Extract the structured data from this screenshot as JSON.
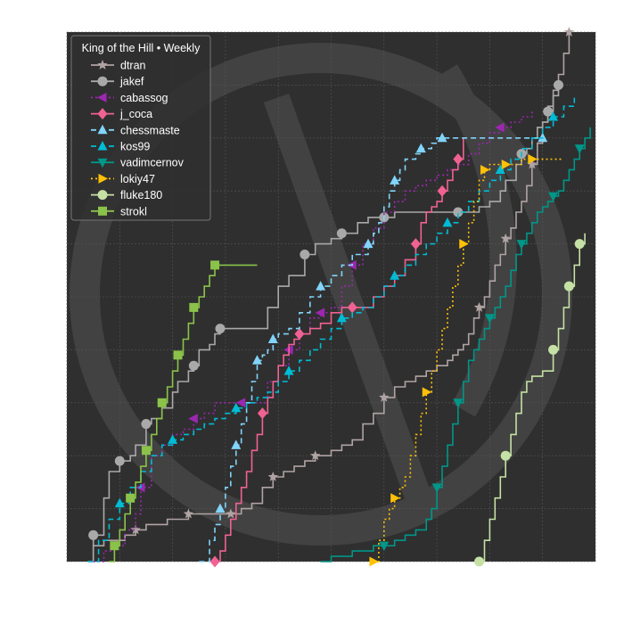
{
  "chart_data": {
    "type": "line",
    "title": "",
    "xlabel": "",
    "ylabel": "",
    "xlim": [
      0,
      100
    ],
    "ylim": [
      0,
      100
    ],
    "grid": true,
    "legend": {
      "title": "King of the Hill • Weekly",
      "placement": "top-left"
    },
    "background": {
      "plot": "#2f2f2f",
      "grid": "#555555",
      "watermark": "lichess-knight"
    },
    "series": [
      {
        "name": "dtran",
        "color": "#b0a3a3",
        "dash": "solid",
        "marker": "star",
        "x": [
          4,
          5,
          7,
          9,
          11,
          12,
          13,
          15,
          17,
          19,
          21,
          23,
          25,
          27,
          29,
          31,
          33,
          35,
          37,
          39,
          41,
          43,
          45,
          47,
          48,
          50,
          52,
          54,
          56,
          58,
          60,
          62,
          64,
          66,
          67,
          68,
          69,
          70,
          71,
          72,
          73,
          74,
          75,
          76,
          77,
          78,
          79,
          80,
          81,
          82,
          83,
          84,
          85,
          86,
          87,
          88,
          89,
          90,
          91,
          92,
          93,
          94,
          95
        ],
        "y": [
          0,
          3,
          4,
          4,
          5,
          5,
          6,
          7,
          7,
          8,
          8,
          9,
          9,
          9,
          9,
          9,
          10,
          11,
          14,
          16,
          17,
          18,
          19,
          20,
          20,
          21,
          22,
          23,
          26,
          28,
          31,
          33,
          34,
          35,
          35,
          36,
          36,
          37,
          37,
          38,
          39,
          40,
          41,
          43,
          46,
          48,
          50,
          53,
          56,
          58,
          61,
          63,
          66,
          68,
          71,
          75,
          79,
          83,
          86,
          89,
          92,
          96,
          100
        ],
        "marker_idx": [
          6,
          11,
          15,
          19,
          23,
          30,
          45,
          50,
          55,
          62
        ]
      },
      {
        "name": "jakef",
        "color": "#a9a9a9",
        "dash": "solid",
        "marker": "circle",
        "x": [
          4,
          5,
          7,
          8,
          10,
          12,
          13,
          15,
          16,
          18,
          20,
          21,
          23,
          24,
          25,
          27,
          28,
          29,
          32,
          35,
          38,
          40,
          42,
          45,
          47,
          50,
          52,
          55,
          57,
          60,
          62,
          64,
          66,
          67,
          68,
          69,
          70,
          71,
          72,
          73,
          74,
          76,
          78,
          80,
          82,
          83,
          85,
          86,
          87,
          88,
          89,
          90,
          91,
          92,
          93
        ],
        "y": [
          0,
          5,
          12,
          17,
          19,
          20,
          22,
          26,
          27,
          29,
          32,
          34,
          36,
          37,
          40,
          41,
          43,
          44,
          44,
          44,
          48,
          52,
          54,
          58,
          60,
          61,
          62,
          64,
          65,
          65,
          66,
          66,
          66,
          66,
          66,
          66,
          66,
          66,
          66,
          66,
          66,
          66,
          67,
          68,
          70,
          72,
          75,
          77,
          78,
          80,
          82,
          83,
          85,
          88,
          90
        ],
        "marker_idx": [
          1,
          4,
          7,
          13,
          17,
          23,
          26,
          29,
          40,
          47,
          52,
          54
        ]
      },
      {
        "name": "cabassog",
        "color": "#9c27b0",
        "dash": "dotted",
        "marker": "triangle-left",
        "x": [
          5,
          7,
          9,
          11,
          13,
          14,
          16,
          18,
          20,
          22,
          24,
          26,
          28,
          30,
          33,
          36,
          38,
          40,
          42,
          44,
          46,
          48,
          50,
          52,
          54,
          56,
          58,
          60,
          62,
          64,
          66,
          68,
          70,
          72,
          74,
          76,
          78,
          80,
          82,
          84,
          86,
          88
        ],
        "y": [
          0,
          2,
          3,
          6,
          9,
          14,
          20,
          22,
          24,
          25,
          27,
          28,
          30,
          30,
          30,
          30,
          34,
          37,
          40,
          43,
          46,
          47,
          48,
          52,
          56,
          60,
          63,
          66,
          68,
          70,
          71,
          72,
          73,
          74,
          75,
          77,
          79,
          81,
          82,
          83,
          84,
          85
        ],
        "marker_idx": [
          2,
          5,
          10,
          14,
          18,
          21,
          24,
          38
        ]
      },
      {
        "name": "j_coca",
        "color": "#f06292",
        "dash": "solid",
        "marker": "diamond",
        "x": [
          28,
          29,
          30,
          31,
          32,
          33,
          34,
          35,
          36,
          37,
          38,
          39,
          40,
          41,
          42,
          43,
          44,
          45,
          46,
          48,
          50,
          52,
          54,
          56,
          58,
          60,
          62,
          64,
          66,
          67,
          68,
          69,
          70,
          71,
          72,
          73,
          74,
          75
        ],
        "y": [
          0,
          2,
          5,
          8,
          11,
          14,
          17,
          21,
          24,
          28,
          31,
          34,
          37,
          39,
          41,
          42,
          43,
          43,
          44,
          45,
          47,
          48,
          48,
          48,
          50,
          52,
          54,
          57,
          60,
          64,
          66,
          67,
          68,
          70,
          72,
          74,
          76,
          80
        ],
        "marker_idx": [
          0,
          9,
          16,
          22,
          28,
          33,
          36
        ]
      },
      {
        "name": "chessmaste",
        "color": "#81d4fa",
        "dash": "dashed",
        "marker": "triangle-up",
        "x": [
          25,
          27,
          28,
          29,
          30,
          31,
          32,
          33,
          34,
          35,
          36,
          37,
          38,
          39,
          40,
          42,
          44,
          46,
          48,
          50,
          52,
          54,
          56,
          57,
          58,
          59,
          60,
          61,
          62,
          63,
          64,
          65,
          66,
          67,
          68,
          69,
          70,
          71,
          72,
          74,
          76,
          78,
          80,
          82,
          84,
          86,
          88,
          90
        ],
        "y": [
          0,
          4,
          7,
          10,
          14,
          18,
          22,
          26,
          30,
          34,
          38,
          39,
          40,
          42,
          43,
          44,
          47,
          50,
          52,
          54,
          56,
          58,
          58,
          60,
          62,
          64,
          67,
          70,
          72,
          74,
          76,
          76,
          77,
          78,
          78,
          79,
          80,
          80,
          80,
          80,
          80,
          80,
          80,
          80,
          80,
          80,
          80,
          80
        ],
        "marker_idx": [
          3,
          6,
          10,
          13,
          18,
          23,
          28,
          33,
          37,
          47
        ]
      },
      {
        "name": "kos99",
        "color": "#00bcd4",
        "dash": "dashed",
        "marker": "triangle-up",
        "x": [
          4,
          6,
          8,
          10,
          12,
          14,
          16,
          18,
          20,
          22,
          24,
          26,
          28,
          30,
          32,
          34,
          36,
          38,
          40,
          42,
          44,
          46,
          48,
          50,
          52,
          54,
          56,
          58,
          60,
          62,
          64,
          66,
          68,
          70,
          72,
          74,
          76,
          78,
          80,
          82,
          84,
          86,
          88,
          90,
          92,
          94,
          96
        ],
        "y": [
          0,
          4,
          8,
          11,
          14,
          17,
          20,
          22,
          23,
          24,
          25,
          26,
          27,
          28,
          29,
          30,
          31,
          32,
          34,
          36,
          38,
          40,
          42,
          44,
          46,
          47,
          48,
          50,
          52,
          54,
          56,
          58,
          60,
          62,
          64,
          66,
          68,
          70,
          72,
          74,
          76,
          78,
          80,
          82,
          84,
          86,
          88
        ],
        "marker_idx": [
          3,
          8,
          14,
          19,
          24,
          29,
          34,
          39,
          44
        ]
      },
      {
        "name": "vadimcernov",
        "color": "#009688",
        "dash": "solid",
        "marker": "triangle-down",
        "x": [
          48,
          50,
          52,
          54,
          56,
          58,
          60,
          62,
          64,
          66,
          68,
          69,
          70,
          71,
          72,
          73,
          74,
          75,
          76,
          77,
          78,
          79,
          80,
          81,
          82,
          83,
          84,
          85,
          86,
          87,
          88,
          89,
          90,
          91,
          92,
          93,
          94,
          95,
          96,
          97,
          98,
          99
        ],
        "y": [
          0,
          1,
          1,
          2,
          2,
          3,
          3,
          4,
          5,
          6,
          8,
          10,
          14,
          18,
          22,
          26,
          30,
          34,
          38,
          40,
          42,
          44,
          46,
          48,
          50,
          52,
          55,
          58,
          60,
          62,
          64,
          66,
          67,
          68,
          69,
          70,
          72,
          74,
          76,
          78,
          80,
          82
        ],
        "marker_idx": [
          6,
          12,
          16,
          22,
          28,
          34,
          39
        ]
      },
      {
        "name": "lokiy47",
        "color": "#ffc107",
        "dash": "dotted",
        "marker": "triangle-right",
        "x": [
          58,
          59,
          60,
          61,
          62,
          63,
          64,
          65,
          66,
          67,
          68,
          69,
          70,
          71,
          72,
          73,
          74,
          75,
          76,
          77,
          78,
          79,
          80,
          81,
          82,
          83,
          84,
          85,
          86,
          87,
          88,
          89,
          90,
          91,
          92,
          93,
          94
        ],
        "y": [
          0,
          4,
          8,
          10,
          12,
          14,
          16,
          20,
          24,
          28,
          32,
          36,
          40,
          44,
          48,
          52,
          56,
          60,
          64,
          68,
          72,
          74,
          75,
          75,
          75,
          75,
          75,
          75,
          76,
          76,
          76,
          76,
          76,
          76,
          76,
          76,
          76
        ],
        "marker_idx": [
          0,
          4,
          10,
          17,
          21,
          25,
          30
        ]
      },
      {
        "name": "fluke180",
        "color": "#c5e1a5",
        "dash": "solid",
        "marker": "circle",
        "x": [
          78,
          79,
          80,
          81,
          82,
          83,
          84,
          85,
          86,
          87,
          88,
          89,
          90,
          91,
          92,
          93,
          94,
          95,
          96,
          97,
          98
        ],
        "y": [
          0,
          4,
          8,
          12,
          16,
          20,
          24,
          28,
          32,
          34,
          35,
          35,
          36,
          36,
          40,
          44,
          48,
          52,
          56,
          60,
          62
        ],
        "marker_idx": [
          0,
          5,
          14,
          17,
          19
        ]
      },
      {
        "name": "strokl",
        "color": "#8bc34a",
        "dash": "solid",
        "marker": "square",
        "x": [
          8,
          9,
          10,
          11,
          12,
          13,
          14,
          15,
          16,
          17,
          18,
          19,
          20,
          21,
          22,
          23,
          24,
          25,
          26,
          27,
          28,
          29,
          30,
          31,
          32,
          33,
          34,
          35,
          36
        ],
        "y": [
          0,
          3,
          6,
          9,
          12,
          15,
          18,
          21,
          24,
          27,
          30,
          33,
          36,
          39,
          42,
          45,
          48,
          50,
          52,
          54,
          56,
          56,
          56,
          56,
          56,
          56,
          56,
          56,
          56
        ],
        "marker_idx": [
          1,
          4,
          7,
          10,
          13,
          16,
          20
        ]
      }
    ]
  }
}
